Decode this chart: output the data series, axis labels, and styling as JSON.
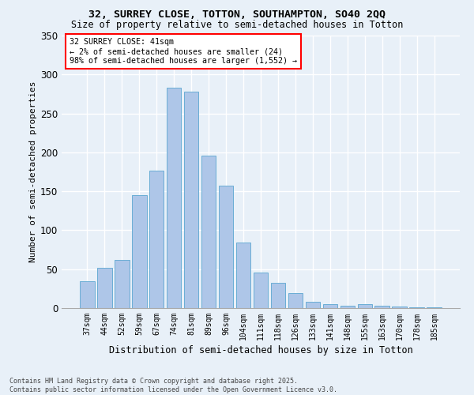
{
  "title": "32, SURREY CLOSE, TOTTON, SOUTHAMPTON, SO40 2QQ",
  "subtitle": "Size of property relative to semi-detached houses in Totton",
  "xlabel": "Distribution of semi-detached houses by size in Totton",
  "ylabel": "Number of semi-detached properties",
  "categories": [
    "37sqm",
    "44sqm",
    "52sqm",
    "59sqm",
    "67sqm",
    "74sqm",
    "81sqm",
    "89sqm",
    "96sqm",
    "104sqm",
    "111sqm",
    "118sqm",
    "126sqm",
    "133sqm",
    "141sqm",
    "148sqm",
    "155sqm",
    "163sqm",
    "170sqm",
    "178sqm",
    "185sqm"
  ],
  "bar_heights": [
    35,
    52,
    62,
    145,
    177,
    283,
    278,
    196,
    157,
    84,
    46,
    32,
    19,
    8,
    5,
    3,
    5,
    3,
    2,
    1,
    1
  ],
  "annotation_text": "32 SURREY CLOSE: 41sqm\n← 2% of semi-detached houses are smaller (24)\n98% of semi-detached houses are larger (1,552) →",
  "bar_color": "#aec6e8",
  "bar_edge_color": "#6aadd5",
  "bg_color": "#e8f0f8",
  "grid_color": "#ffffff",
  "footer_line1": "Contains HM Land Registry data © Crown copyright and database right 2025.",
  "footer_line2": "Contains public sector information licensed under the Open Government Licence v3.0.",
  "ylim": [
    0,
    350
  ],
  "yticks": [
    0,
    50,
    100,
    150,
    200,
    250,
    300,
    350
  ]
}
